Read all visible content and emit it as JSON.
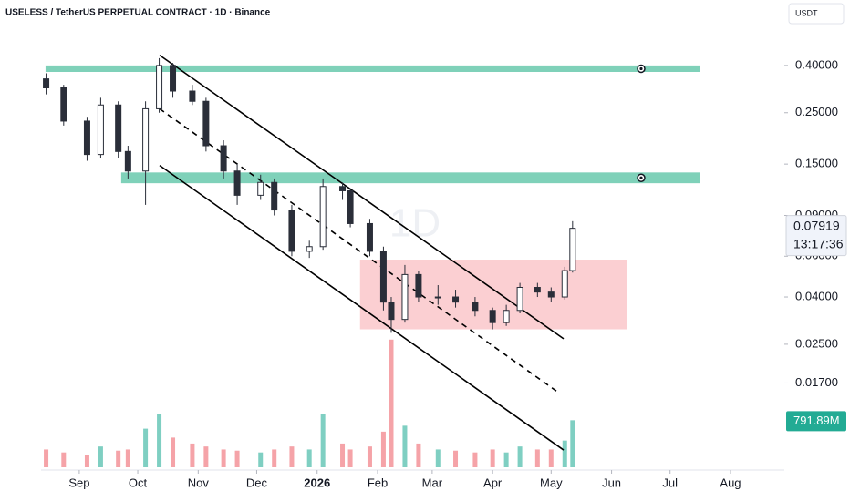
{
  "chart_data": {
    "type": "candlestick",
    "title": "USELESS / TetherUS PERPETUAL CONTRACT · 1D · Binance",
    "currency": "USDT",
    "watermark": "1D",
    "log_scale": true,
    "ylim": [
      0.0069,
      0.64
    ],
    "yticks": [
      {
        "value": 0.4,
        "label": "0.40000"
      },
      {
        "value": 0.25,
        "label": "0.25000"
      },
      {
        "value": 0.15,
        "label": "0.15000"
      },
      {
        "value": 0.09,
        "label": "0.09000"
      },
      {
        "value": 0.06,
        "label": "0.06000"
      },
      {
        "value": 0.04,
        "label": "0.04000"
      },
      {
        "value": 0.025,
        "label": "0.02500"
      },
      {
        "value": 0.017,
        "label": "0.01700"
      }
    ],
    "xlim": [
      -19.6,
      361.6
    ],
    "xticks": [
      {
        "value": 0,
        "label": "Sep"
      },
      {
        "value": 30,
        "label": "Oct"
      },
      {
        "value": 61,
        "label": "Nov"
      },
      {
        "value": 91,
        "label": "Dec"
      },
      {
        "value": 122,
        "label": "2026",
        "bold": true
      },
      {
        "value": 153,
        "label": "Feb"
      },
      {
        "value": 181,
        "label": "Mar"
      },
      {
        "value": 212,
        "label": "Apr"
      },
      {
        "value": 242,
        "label": "May"
      },
      {
        "value": 273,
        "label": "Jun"
      },
      {
        "value": 303,
        "label": "Jul"
      },
      {
        "value": 334,
        "label": "Aug"
      }
    ],
    "x": [
      -17,
      -8,
      4,
      11,
      20,
      25,
      34,
      41,
      48,
      58,
      65,
      74,
      81,
      93,
      100,
      109,
      118,
      125,
      135,
      139,
      149,
      156,
      160,
      167,
      174,
      184,
      193,
      203,
      212,
      219,
      226,
      235,
      242,
      249,
      253
    ],
    "open": [
      0.35,
      0.32,
      0.23,
      0.165,
      0.27,
      0.17,
      0.14,
      0.26,
      0.4,
      0.31,
      0.28,
      0.18,
      0.14,
      0.11,
      0.125,
      0.095,
      0.063,
      0.066,
      0.12,
      0.115,
      0.083,
      0.063,
      0.038,
      0.032,
      0.05,
      0.04,
      0.04,
      0.038,
      0.035,
      0.031,
      0.035,
      0.044,
      0.042,
      0.04,
      0.052
    ],
    "high": [
      0.37,
      0.33,
      0.24,
      0.29,
      0.28,
      0.18,
      0.28,
      0.43,
      0.41,
      0.33,
      0.29,
      0.19,
      0.15,
      0.135,
      0.13,
      0.1,
      0.07,
      0.13,
      0.125,
      0.118,
      0.087,
      0.066,
      0.04,
      0.055,
      0.052,
      0.045,
      0.043,
      0.04,
      0.036,
      0.037,
      0.046,
      0.046,
      0.044,
      0.054,
      0.085
    ],
    "low": [
      0.3,
      0.22,
      0.155,
      0.16,
      0.16,
      0.13,
      0.1,
      0.25,
      0.29,
      0.27,
      0.17,
      0.13,
      0.1,
      0.105,
      0.09,
      0.06,
      0.059,
      0.064,
      0.105,
      0.08,
      0.06,
      0.035,
      0.028,
      0.031,
      0.038,
      0.037,
      0.036,
      0.033,
      0.029,
      0.03,
      0.034,
      0.04,
      0.038,
      0.039,
      0.051
    ],
    "close": [
      0.32,
      0.23,
      0.165,
      0.27,
      0.17,
      0.14,
      0.26,
      0.4,
      0.31,
      0.28,
      0.18,
      0.14,
      0.11,
      0.125,
      0.095,
      0.063,
      0.066,
      0.12,
      0.115,
      0.083,
      0.063,
      0.038,
      0.032,
      0.05,
      0.04,
      0.04,
      0.038,
      0.035,
      0.031,
      0.035,
      0.044,
      0.042,
      0.04,
      0.052,
      0.07919
    ],
    "up_color": "#ffffff",
    "down_color": "#2a2e39",
    "wick_color": "#2a2e39",
    "volume": [
      300,
      250,
      200,
      350,
      280,
      300,
      650,
      900,
      500,
      400,
      350,
      300,
      280,
      250,
      300,
      350,
      300,
      900,
      400,
      300,
      350,
      600,
      2150,
      700,
      400,
      300,
      280,
      250,
      300,
      250,
      350,
      300,
      300,
      450,
      791.89
    ],
    "volume_lim": [
      0,
      2300
    ],
    "volume_up_color": "#7fcfc2",
    "volume_down_color": "#f5a3a8",
    "last_volume_label": "791.89M",
    "countdown": "13:17:36",
    "zones": [
      {
        "x": [
          -17.3,
          318.5
        ],
        "y": [
          0.375,
          0.4
        ],
        "color": "#7fd1b9"
      },
      {
        "x": [
          21.5,
          318.5
        ],
        "y": [
          0.124,
          0.138
        ],
        "color": "#7fd1b9"
      },
      {
        "x": [
          144,
          281
        ],
        "y": [
          0.029,
          0.058
        ],
        "color": "#fbcfd2"
      }
    ],
    "lines": [
      {
        "x": [
          41.2,
          248.4
        ],
        "y": [
          0.443,
          0.0264
        ],
        "dashed": false
      },
      {
        "x": [
          41.2,
          245.6
        ],
        "y": [
          0.26,
          0.0155
        ],
        "dashed": true
      },
      {
        "x": [
          41.2,
          248.4
        ],
        "y": [
          0.148,
          0.00873
        ],
        "dashed": false
      }
    ]
  }
}
